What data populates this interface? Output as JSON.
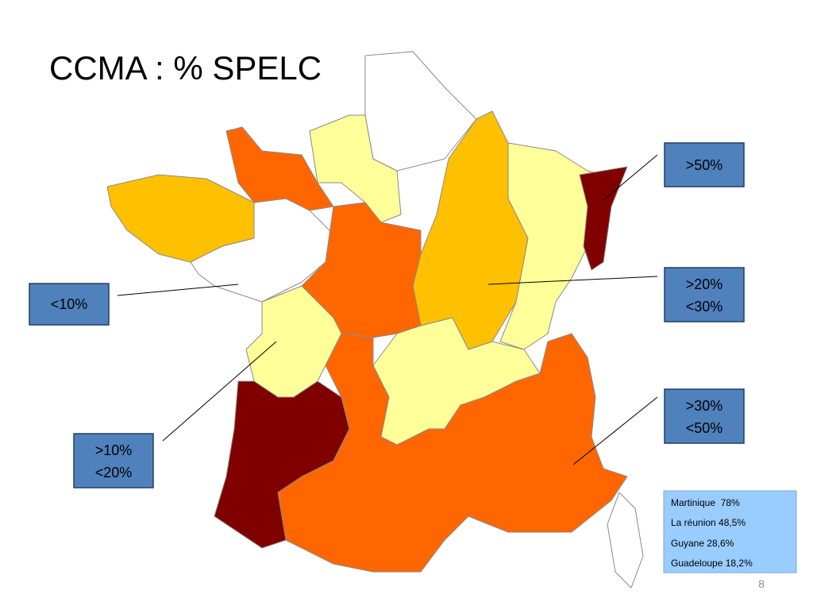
{
  "title": "CCMA : % SPELC",
  "legend": [
    {
      "lines": [
        ">50%"
      ]
    },
    {
      "lines": [
        ">20%",
        "<30%"
      ]
    },
    {
      "lines": [
        ">30%",
        "<50%"
      ]
    },
    {
      "lines": [
        "<10%"
      ]
    },
    {
      "lines": [
        ">10%",
        "<20%"
      ]
    }
  ],
  "overseas": [
    "Martinique  78%",
    "La réunion 48,5%",
    "Guyane 28,6%",
    "Guadeloupe 18,2%"
  ],
  "page_number": "8"
}
